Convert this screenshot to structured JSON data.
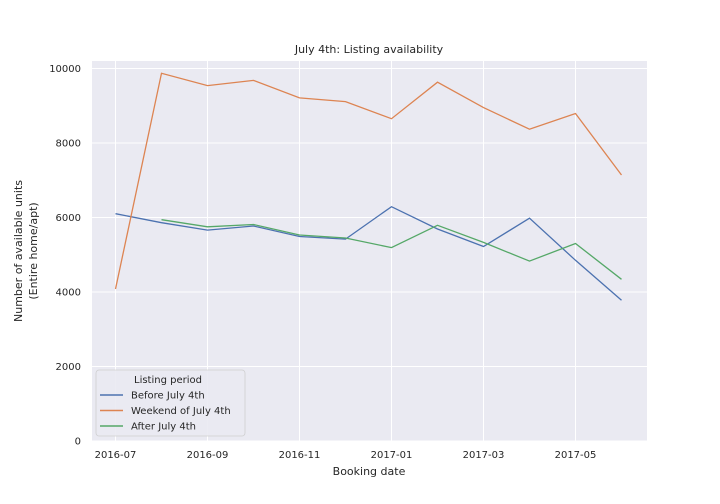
{
  "chart_data": {
    "type": "line",
    "title": "July 4th: Listing availability",
    "xlabel": "Booking date",
    "ylabel": [
      "Number of available units",
      "(Entire home/apt)"
    ],
    "x": [
      "2016-07",
      "2016-08",
      "2016-09",
      "2016-10",
      "2016-11",
      "2016-12",
      "2017-01",
      "2017-02",
      "2017-03",
      "2017-04",
      "2017-05",
      "2017-06"
    ],
    "x_ticks": [
      "2016-07",
      "2016-09",
      "2016-11",
      "2017-01",
      "2017-03",
      "2017-05"
    ],
    "ylim": [
      0,
      10200
    ],
    "y_ticks": [
      0,
      2000,
      4000,
      6000,
      8000,
      10000
    ],
    "grid": true,
    "legend": {
      "title": "Listing period",
      "placement": "lower-left"
    },
    "series": [
      {
        "name": "Before July 4th",
        "color": "#4c72b0",
        "values": [
          6100,
          5860,
          5660,
          5770,
          5490,
          5420,
          6290,
          5690,
          5220,
          5980,
          4850,
          3780
        ]
      },
      {
        "name": "Weekend of July 4th",
        "color": "#dd8452",
        "values": [
          4080,
          9870,
          9540,
          9680,
          9210,
          9110,
          8650,
          9630,
          8950,
          8370,
          8790,
          7140
        ]
      },
      {
        "name": "After July 4th",
        "color": "#55a868",
        "values": [
          null,
          5940,
          5750,
          5810,
          5530,
          5450,
          5190,
          5790,
          5330,
          4830,
          5300,
          4340
        ]
      }
    ]
  }
}
